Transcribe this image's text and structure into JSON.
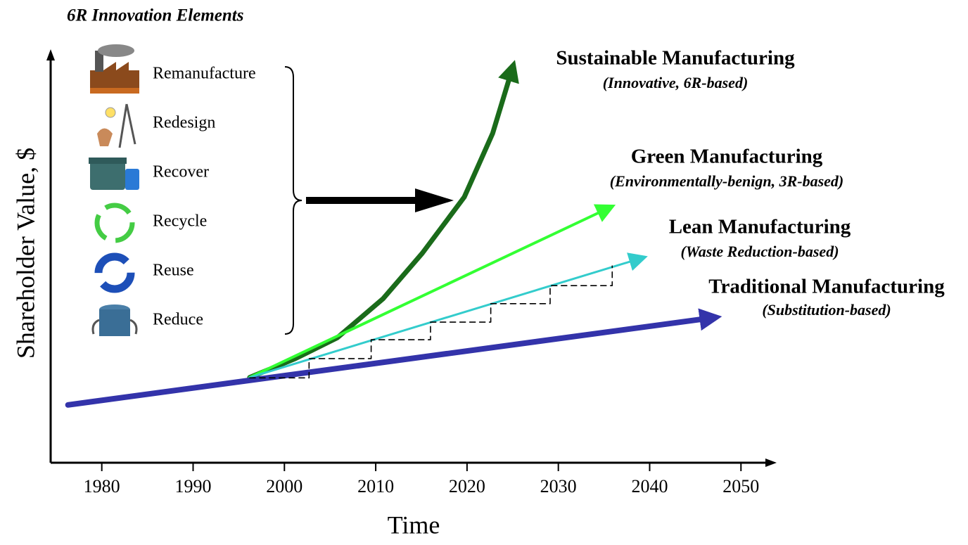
{
  "chart_data": {
    "type": "line",
    "panel": {
      "title": "6R Innovation Elements",
      "items": [
        "Remanufacture",
        "Redesign",
        "Recover",
        "Recycle",
        "Reuse",
        "Reduce"
      ]
    },
    "xlabel": "Time",
    "ylabel": "Shareholder Value, $",
    "xlim": [
      1974.4,
      2053.6
    ],
    "ylim": [
      0,
      100
    ],
    "xticks": [
      1980,
      1990,
      2000,
      2010,
      2020,
      2030,
      2040,
      2050
    ],
    "series": [
      {
        "name": "Sustainable Manufacturing",
        "note": "(Innovative, 6R-based)",
        "color": "#1a6b1a",
        "x": [
          1996.2,
          2001.2,
          2005.8,
          2010.8,
          2015.1,
          2019.7,
          2022.8,
          2024.9
        ],
        "values": [
          20.8,
          25.4,
          30.5,
          40,
          51.1,
          64.8,
          80.3,
          95.7
        ]
      },
      {
        "name": "Green Manufacturing",
        "note": "(Environmentally-benign, 3R-based)",
        "color": "#33ff33",
        "x": [
          1996.2,
          2035.3
        ],
        "values": [
          20.8,
          61.9
        ]
      },
      {
        "name": "Lean Manufacturing",
        "note": "(Waste Reduction-based)",
        "color": "#33cccc",
        "x": [
          1996.2,
          2038.8
        ],
        "values": [
          20.8,
          49.7
        ]
      },
      {
        "name": "Traditional Manufacturing",
        "note": "(Substitution-based)",
        "color": "#3333aa",
        "x": [
          1976.3,
          2046.7
        ],
        "values": [
          14.1,
          35.3
        ]
      },
      {
        "color": "#000000",
        "dashed": true,
        "x": [
          1996.2,
          2002.7,
          2002.7,
          2009.5,
          2009.5,
          2016,
          2016,
          2022.6,
          2022.6,
          2029.1,
          2029.1,
          2035.9,
          2035.9
        ],
        "values": [
          20.7,
          20.7,
          25.4,
          25.4,
          30,
          30,
          34.3,
          34.3,
          38.8,
          38.8,
          43.2,
          43.2,
          48
        ]
      }
    ]
  }
}
